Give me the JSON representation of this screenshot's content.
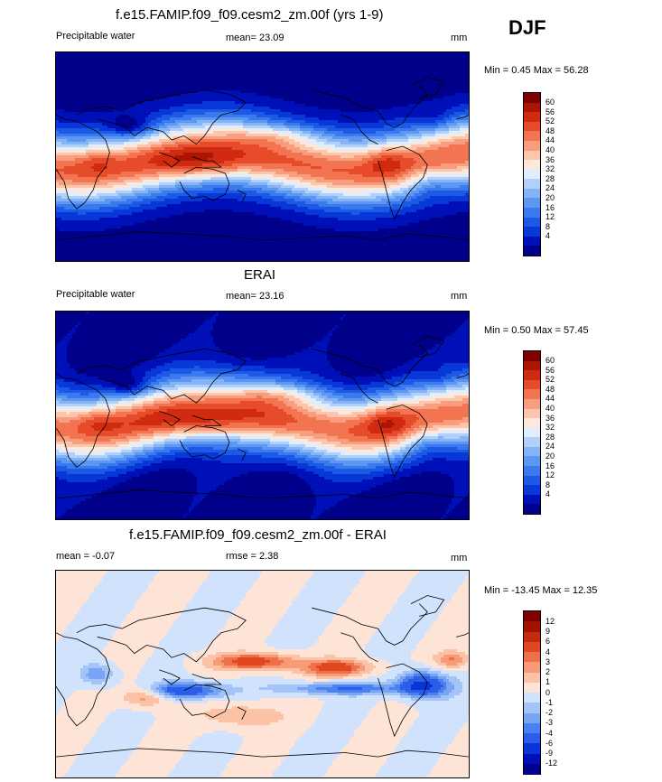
{
  "season": "DJF",
  "panels": [
    {
      "title": "f.e15.FAMIP.f09_f09.cesm2_zm.00f (yrs 1-9)",
      "left_label": "Precipitable water",
      "center_label": "mean=  23.09",
      "right_label": "mm",
      "minmax": "Min =   0.45 Max =  56.28",
      "kind": "field",
      "colors": [
        "#00008b",
        "#0010b8",
        "#0838d8",
        "#1c5ae6",
        "#3a7aee",
        "#5c98f2",
        "#84b4f6",
        "#b0d0fa",
        "#deeefe",
        "#fde8dc",
        "#fbc6ac",
        "#f89e7e",
        "#f27450",
        "#e64c2a",
        "#d02a10",
        "#ac1404",
        "#800000"
      ],
      "levels": [
        "60",
        "56",
        "52",
        "48",
        "44",
        "40",
        "36",
        "32",
        "28",
        "24",
        "20",
        "16",
        "12",
        "8",
        "4"
      ]
    },
    {
      "title": "ERAI",
      "left_label": "Precipitable water",
      "center_label": "mean=  23.16",
      "right_label": "mm",
      "minmax": "Min =   0.50 Max =  57.45",
      "kind": "field",
      "colors": [
        "#00008b",
        "#0010b8",
        "#0838d8",
        "#1c5ae6",
        "#3a7aee",
        "#5c98f2",
        "#84b4f6",
        "#b0d0fa",
        "#deeefe",
        "#fde8dc",
        "#fbc6ac",
        "#f89e7e",
        "#f27450",
        "#e64c2a",
        "#d02a10",
        "#ac1404",
        "#800000"
      ],
      "levels": [
        "60",
        "56",
        "52",
        "48",
        "44",
        "40",
        "36",
        "32",
        "28",
        "24",
        "20",
        "16",
        "12",
        "8",
        "4"
      ]
    },
    {
      "title": "f.e15.FAMIP.f09_f09.cesm2_zm.00f - ERAI",
      "left_label": "mean =  -0.07",
      "center_label": "rmse =   2.38",
      "right_label": "mm",
      "minmax": "Min = -13.45 Max =  12.35",
      "kind": "diff",
      "colors": [
        "#00008b",
        "#0010b8",
        "#0a34d6",
        "#2a5ee8",
        "#4a80f0",
        "#78a4f4",
        "#a4c4f8",
        "#d0e2fc",
        "#fde4d6",
        "#fbc2a6",
        "#f69a78",
        "#ee7048",
        "#e04822",
        "#c42a0c",
        "#a01200",
        "#800000"
      ],
      "levels": [
        "12",
        "9",
        "6",
        "4",
        "3",
        "2",
        "1",
        "0",
        "-1",
        "-2",
        "-3",
        "-4",
        "-6",
        "-9",
        "-12"
      ]
    }
  ],
  "chart_data": [
    {
      "type": "heatmap",
      "title": "f.e15.FAMIP.f09_f09.cesm2_zm.00f (yrs 1-9)",
      "subtitle": "Precipitable water",
      "units": "mm",
      "mean": 23.09,
      "min": 0.45,
      "max": 56.28,
      "colorbar_levels": [
        4,
        8,
        12,
        16,
        20,
        24,
        28,
        32,
        36,
        40,
        44,
        48,
        52,
        56,
        60
      ]
    },
    {
      "type": "heatmap",
      "title": "ERAI",
      "subtitle": "Precipitable water",
      "units": "mm",
      "mean": 23.16,
      "min": 0.5,
      "max": 57.45,
      "colorbar_levels": [
        4,
        8,
        12,
        16,
        20,
        24,
        28,
        32,
        36,
        40,
        44,
        48,
        52,
        56,
        60
      ]
    },
    {
      "type": "heatmap",
      "title": "f.e15.FAMIP.f09_f09.cesm2_zm.00f - ERAI",
      "units": "mm",
      "mean": -0.07,
      "rmse": 2.38,
      "min": -13.45,
      "max": 12.35,
      "colorbar_levels": [
        -12,
        -9,
        -6,
        -4,
        -3,
        -2,
        -1,
        0,
        1,
        2,
        3,
        4,
        6,
        9,
        12
      ]
    }
  ]
}
